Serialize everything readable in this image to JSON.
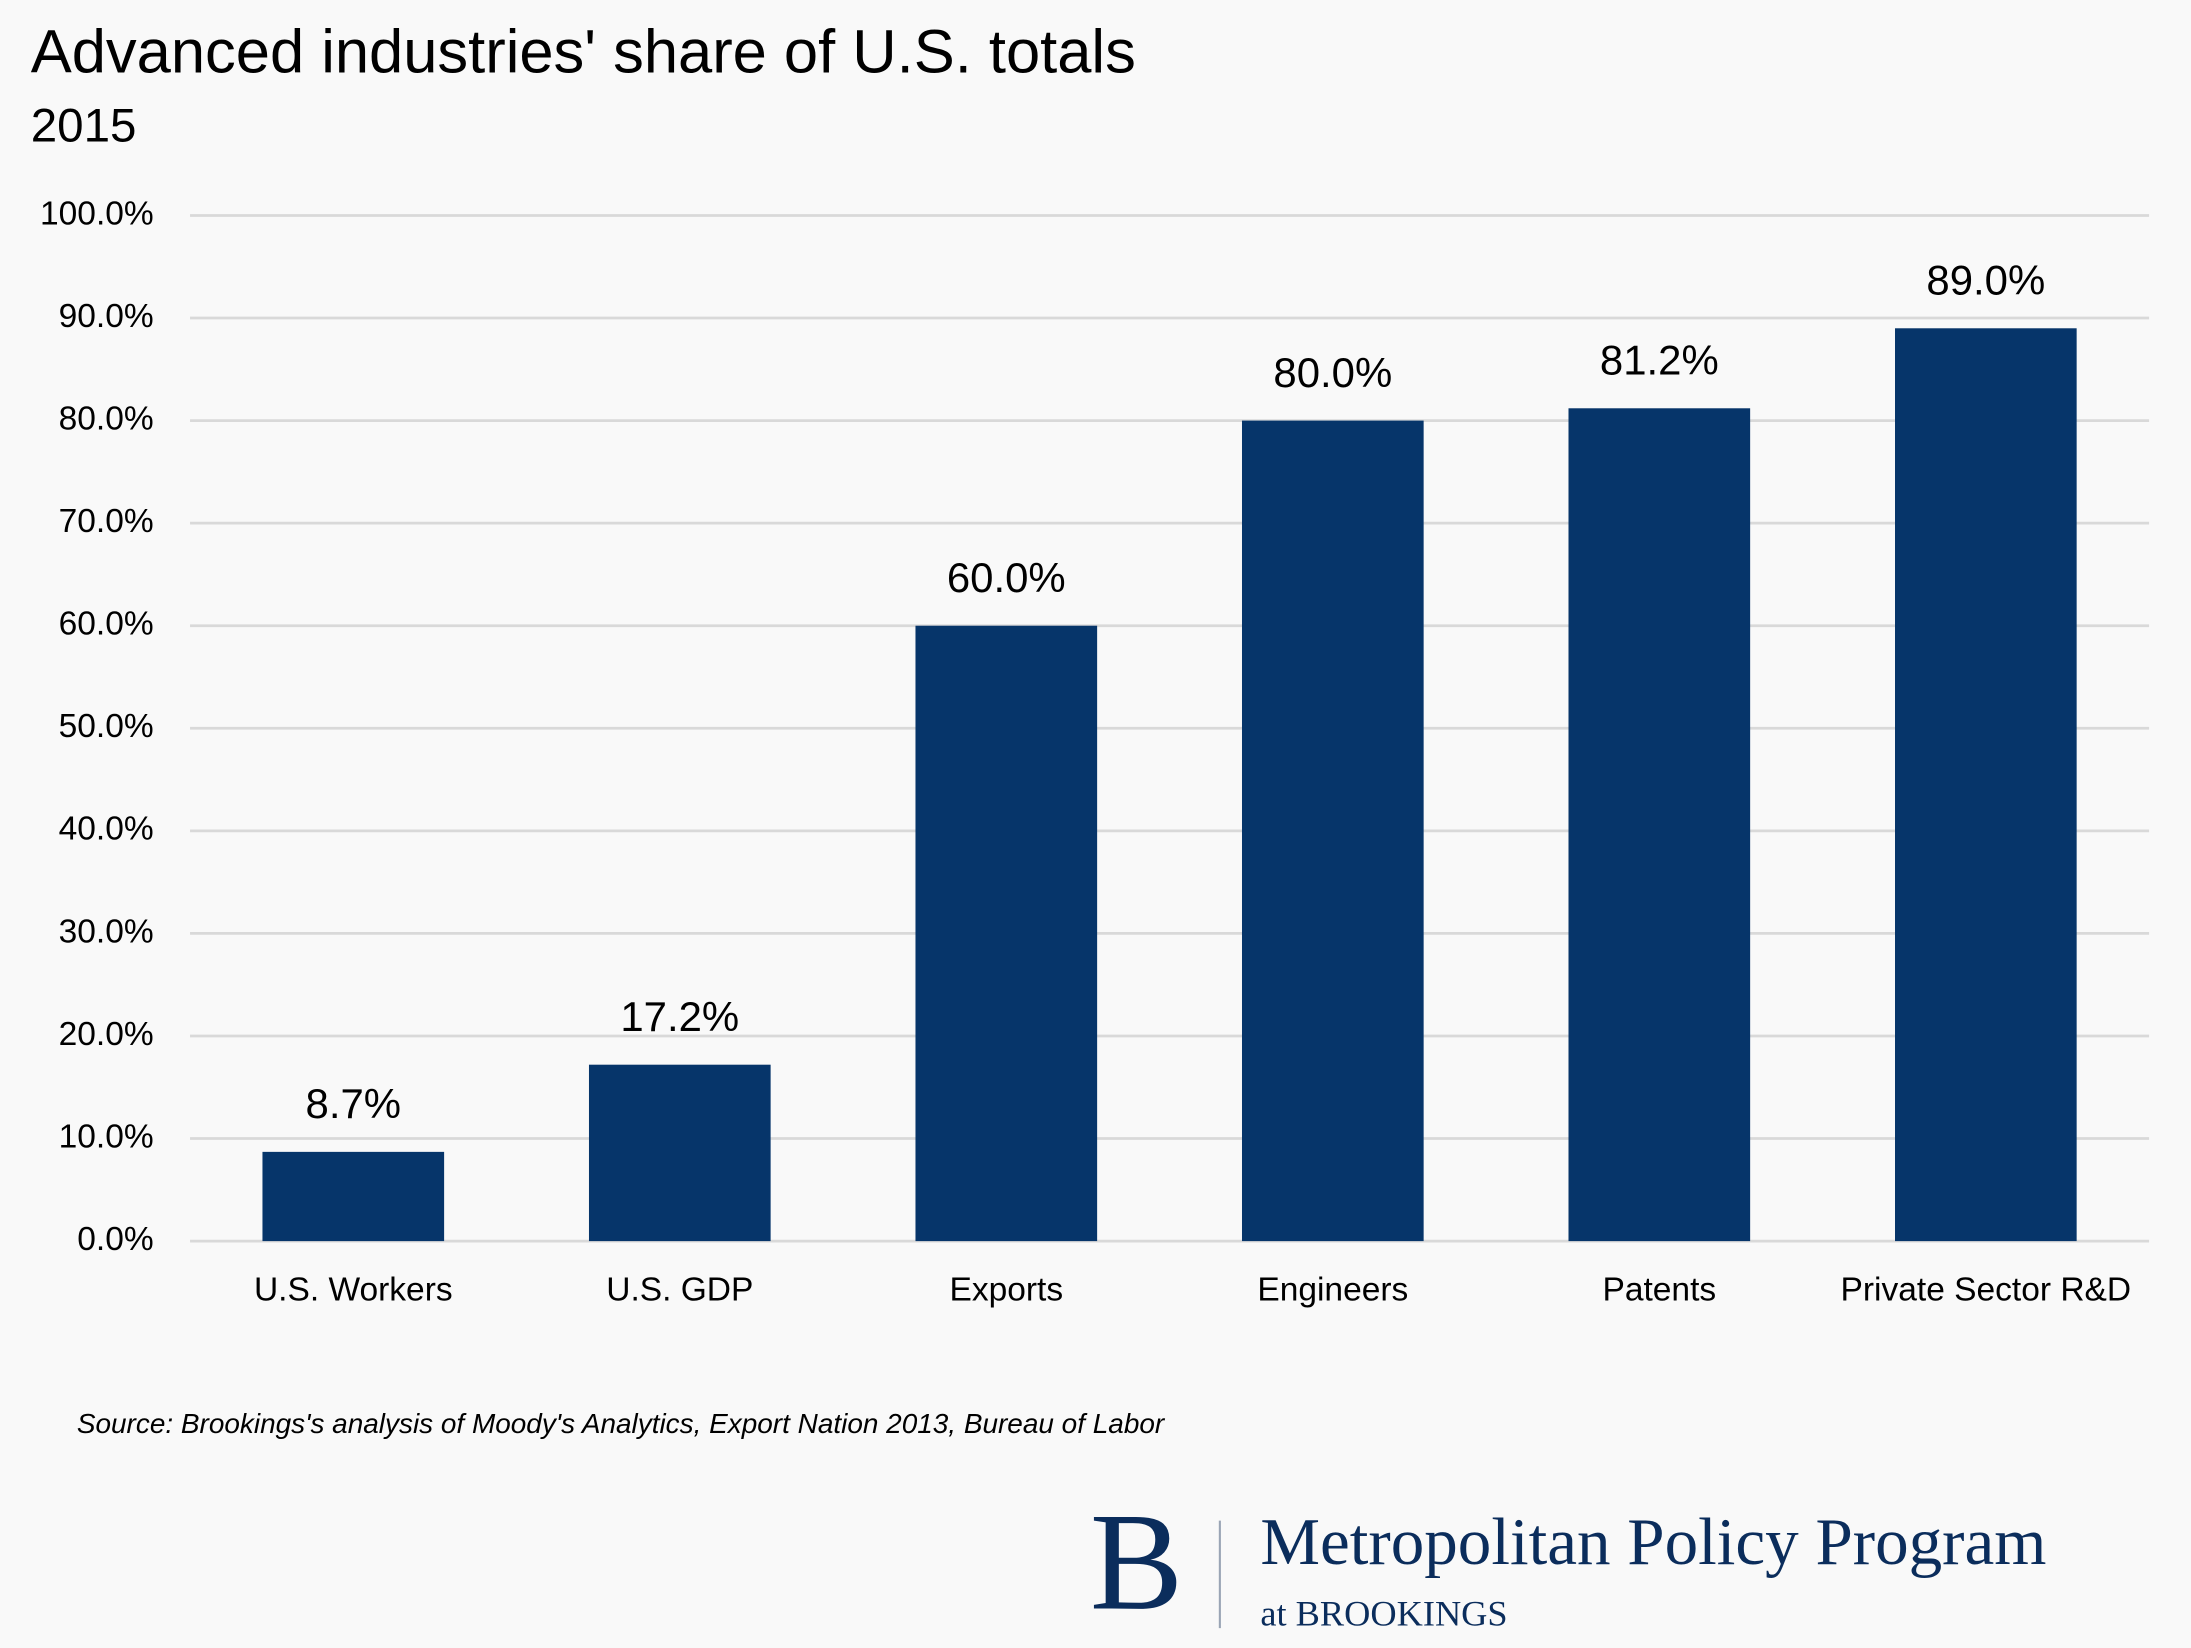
{
  "chart_data": {
    "type": "bar",
    "title": "Advanced industries' share of U.S. totals",
    "subtitle": "2015",
    "categories": [
      "U.S. Workers",
      "U.S. GDP",
      "Exports",
      "Engineers",
      "Patents",
      "Private Sector R&D"
    ],
    "values": [
      8.7,
      17.2,
      60.0,
      80.0,
      81.2,
      89.0
    ],
    "value_labels": [
      "8.7%",
      "17.2%",
      "60.0%",
      "80.0%",
      "81.2%",
      "89.0%"
    ],
    "color": "#06356a",
    "ylim": [
      0,
      100
    ],
    "yticks": [
      {
        "value": 0,
        "label": "0.0%"
      },
      {
        "value": 10,
        "label": "10.0%"
      },
      {
        "value": 20,
        "label": "20.0%"
      },
      {
        "value": 30,
        "label": "30.0%"
      },
      {
        "value": 40,
        "label": "40.0%"
      },
      {
        "value": 50,
        "label": "50.0%"
      },
      {
        "value": 60,
        "label": "60.0%"
      },
      {
        "value": 70,
        "label": "70.0%"
      },
      {
        "value": 80,
        "label": "80.0%"
      },
      {
        "value": 90,
        "label": "90.0%"
      },
      {
        "value": 100,
        "label": "100.0%"
      }
    ],
    "grid": true,
    "source": "Source: Brookings's analysis of Moody's Analytics, Export Nation 2013, Bureau of Labor"
  },
  "branding": {
    "mark": "B",
    "name": "Metropolitan Policy Program",
    "sub": "at BROOKINGS"
  }
}
